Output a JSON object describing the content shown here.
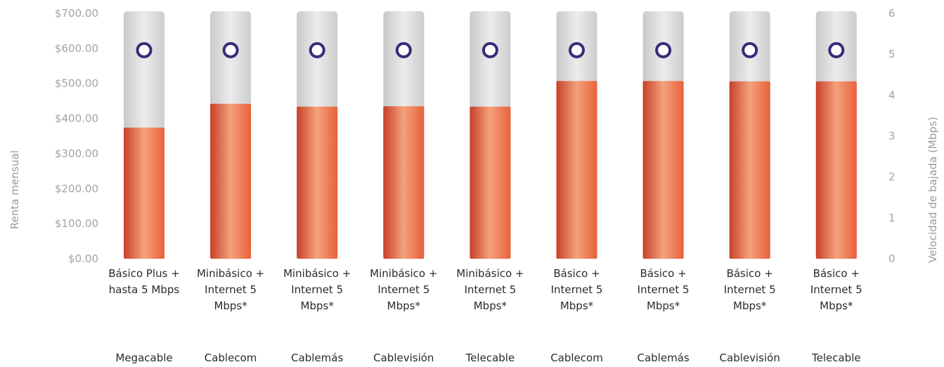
{
  "chart_data": {
    "type": "bar",
    "categories": [
      {
        "plan": [
          "Básico Plus +",
          "hasta 5 Mbps"
        ],
        "provider": "Megacable"
      },
      {
        "plan": [
          "Minibásico +",
          "Internet 5",
          "Mbps*"
        ],
        "provider": "Cablecom"
      },
      {
        "plan": [
          "Minibásico +",
          "Internet 5",
          "Mbps*"
        ],
        "provider": "Cablemás"
      },
      {
        "plan": [
          "Minibásico +",
          "Internet 5",
          "Mbps*"
        ],
        "provider": "Cablevisión"
      },
      {
        "plan": [
          "Minibásico +",
          "Internet 5",
          "Mbps*"
        ],
        "provider": "Telecable"
      },
      {
        "plan": [
          "Básico +",
          "Internet 5",
          "Mbps*"
        ],
        "provider": "Cablecom"
      },
      {
        "plan": [
          "Básico +",
          "Internet 5",
          "Mbps*"
        ],
        "provider": "Cablemás"
      },
      {
        "plan": [
          "Básico +",
          "Internet 5",
          "Mbps*"
        ],
        "provider": "Cablevisión"
      },
      {
        "plan": [
          "Básico +",
          "Internet 5",
          "Mbps*"
        ],
        "provider": "Telecable"
      }
    ],
    "series": [
      {
        "type": "bar",
        "axis": "left",
        "values": [
          374,
          442,
          434,
          435,
          434,
          507,
          507,
          506,
          506
        ]
      },
      {
        "type": "line",
        "axis": "right",
        "values": [
          5.1,
          5.1,
          5.1,
          5.1,
          5.1,
          5.1,
          5.1,
          5.1,
          5.1
        ]
      }
    ],
    "ylabel": "Renta mensual",
    "y2label": "Velocidad de bajada (Mbps)",
    "ylim": [
      0,
      700
    ],
    "y2lim": [
      0,
      6
    ],
    "yticks": [
      "$0.00",
      "$100.00",
      "$200.00",
      "$300.00",
      "$400.00",
      "$500.00",
      "$600.00",
      "$700.00"
    ],
    "y2ticks": [
      "0",
      "1",
      "2",
      "3",
      "4",
      "5",
      "6"
    ],
    "grid": false,
    "legend": "none",
    "colors": {
      "bar_fill": "#ee6a3e",
      "bar_highlight": "#f4a27c",
      "bar_edge": "#c8432a",
      "bar_track": "#e3e3e3",
      "line_start": "#3f3c8f",
      "line_mid": "#8a5ba8",
      "marker_stroke": "#3a2a7a",
      "marker_fill": "#ffffff"
    }
  }
}
